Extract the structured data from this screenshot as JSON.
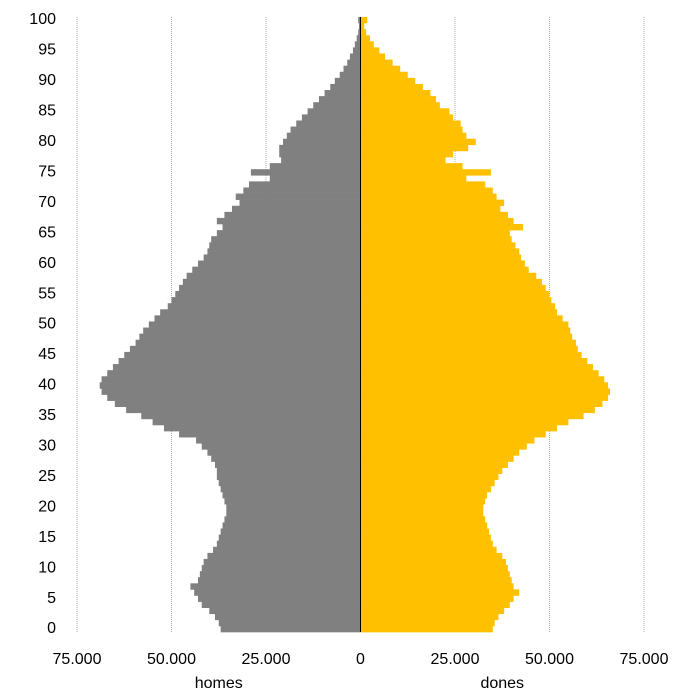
{
  "chart_data": {
    "type": "pyramid",
    "categories": [
      0,
      null,
      null,
      null,
      null,
      5,
      null,
      null,
      null,
      null,
      10,
      null,
      null,
      null,
      null,
      15,
      null,
      null,
      null,
      null,
      20,
      null,
      null,
      null,
      null,
      25,
      null,
      null,
      null,
      null,
      30,
      null,
      null,
      null,
      null,
      35,
      null,
      null,
      null,
      null,
      40,
      null,
      null,
      null,
      null,
      45,
      null,
      null,
      null,
      null,
      50,
      null,
      null,
      null,
      null,
      55,
      null,
      null,
      null,
      null,
      60,
      null,
      null,
      null,
      null,
      65,
      null,
      null,
      null,
      null,
      70,
      null,
      null,
      null,
      null,
      75,
      null,
      null,
      null,
      null,
      80,
      null,
      null,
      null,
      null,
      85,
      null,
      null,
      null,
      null,
      90,
      null,
      null,
      null,
      null,
      95,
      null,
      null,
      null,
      null,
      100
    ],
    "series": [
      {
        "name": "homes",
        "color": "#808080",
        "side": "left",
        "values": [
          37000,
          37500,
          38500,
          40000,
          42000,
          43000,
          44000,
          45000,
          43000,
          42500,
          42000,
          41500,
          40500,
          39000,
          38000,
          37500,
          37000,
          36500,
          36000,
          35500,
          35500,
          36000,
          36500,
          37000,
          37500,
          38000,
          38000,
          38500,
          39500,
          40500,
          42000,
          43500,
          48000,
          52000,
          55000,
          58000,
          62000,
          65000,
          67000,
          68500,
          69000,
          68500,
          67000,
          65500,
          64000,
          62500,
          61000,
          59500,
          58500,
          57500,
          56000,
          54500,
          53000,
          51000,
          50000,
          49000,
          48000,
          47000,
          46000,
          44500,
          43000,
          41500,
          40500,
          40000,
          39500,
          38000,
          36500,
          38000,
          36000,
          34000,
          32000,
          33000,
          31000,
          29500,
          24000,
          29000,
          24000,
          21000,
          21500,
          21500,
          20500,
          19500,
          18500,
          17000,
          15500,
          14000,
          12500,
          11000,
          9500,
          8000,
          6800,
          5500,
          4500,
          3500,
          2800,
          2000,
          1500,
          1000,
          600,
          400,
          600
        ]
      },
      {
        "name": "dones",
        "color": "#ffc000",
        "side": "right",
        "values": [
          35000,
          35500,
          36500,
          38000,
          39500,
          40500,
          42000,
          40500,
          40000,
          39500,
          39000,
          38500,
          37500,
          36000,
          35000,
          34500,
          34000,
          33500,
          33000,
          32500,
          32500,
          33000,
          33500,
          34500,
          35500,
          36500,
          37500,
          39000,
          40500,
          42000,
          44000,
          46000,
          49000,
          52000,
          55000,
          59000,
          62000,
          64000,
          65500,
          66000,
          65500,
          64500,
          63000,
          61500,
          60000,
          58500,
          57500,
          57000,
          56000,
          55500,
          55000,
          53500,
          52000,
          51500,
          50500,
          50000,
          49000,
          48000,
          46500,
          44500,
          43500,
          42500,
          42000,
          41000,
          40000,
          39500,
          43000,
          40500,
          39000,
          37000,
          38000,
          36000,
          35000,
          33000,
          28000,
          34500,
          27000,
          22500,
          24500,
          28500,
          30500,
          28000,
          27000,
          26500,
          24500,
          23500,
          21000,
          20000,
          18500,
          16500,
          14500,
          12500,
          10500,
          8500,
          6500,
          5000,
          3500,
          2500,
          1500,
          1000,
          1800
        ]
      }
    ],
    "xlim": [
      -75000,
      75000
    ],
    "xticks": [
      {
        "value": -75000,
        "label": "75.000"
      },
      {
        "value": -50000,
        "label": "50.000"
      },
      {
        "value": -25000,
        "label": "25.000"
      },
      0,
      {
        "value": 25000,
        "label": "25.000"
      },
      {
        "value": 50000,
        "label": "50.000"
      },
      {
        "value": 75000,
        "label": "75.000"
      }
    ],
    "grid": true
  }
}
